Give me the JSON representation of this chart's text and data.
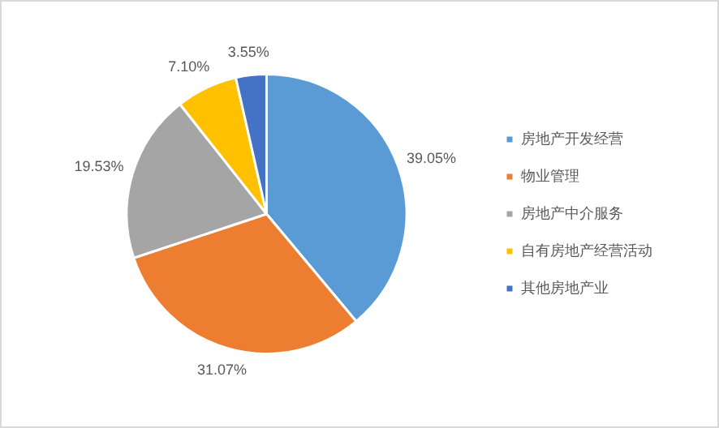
{
  "chart_data": {
    "type": "pie",
    "categories": [
      "房地产开发经营",
      "物业管理",
      "房地产中介服务",
      "自有房地产经营活动",
      "其他房地产业"
    ],
    "values": [
      39.05,
      31.07,
      19.53,
      7.1,
      3.55
    ],
    "value_labels": [
      "39.05%",
      "31.07%",
      "19.53%",
      "7.10%",
      "3.55%"
    ],
    "colors": [
      "#5b9bd5",
      "#ed7d31",
      "#a5a5a5",
      "#ffc000",
      "#4472c4"
    ],
    "legend": "right"
  }
}
